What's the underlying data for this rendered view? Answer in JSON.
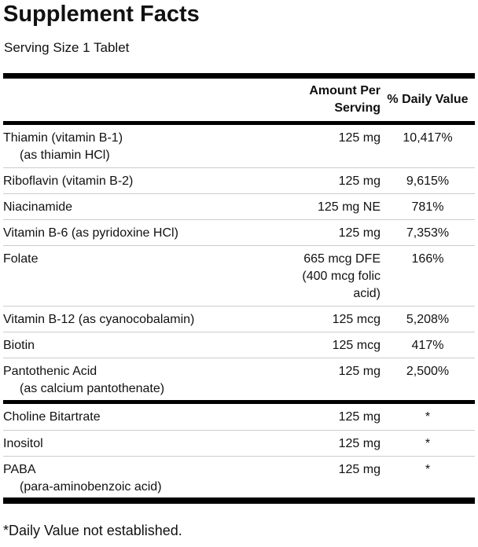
{
  "title": "Supplement Facts",
  "serving_size": "Serving Size 1 Tablet",
  "header": {
    "amount_line1": "Amount Per",
    "amount_line2": "Serving",
    "daily_value": "% Daily Value"
  },
  "group1": [
    {
      "name": "Thiamin (vitamin B-1)",
      "sub": "(as thiamin HCl)",
      "amount": "125 mg",
      "dv": "10,417%"
    },
    {
      "name": "Riboflavin (vitamin B-2)",
      "amount": "125 mg",
      "dv": "9,615%"
    },
    {
      "name": "Niacinamide",
      "amount": "125 mg NE",
      "dv": "781%"
    },
    {
      "name": "Vitamin B-6 (as pyridoxine HCl)",
      "amount": "125 mg",
      "dv": "7,353%"
    },
    {
      "name": "Folate",
      "amount": "665 mcg DFE",
      "amount2": "(400 mcg folic",
      "amount3": "acid)",
      "dv": "166%"
    },
    {
      "name": "Vitamin B-12 (as cyanocobalamin)",
      "amount": "125 mcg",
      "dv": "5,208%"
    },
    {
      "name": "Biotin",
      "amount": "125 mcg",
      "dv": "417%"
    },
    {
      "name": "Pantothenic Acid",
      "sub": "(as calcium pantothenate)",
      "amount": "125 mg",
      "dv": "2,500%"
    }
  ],
  "group2": [
    {
      "name": "Choline Bitartrate",
      "amount": "125 mg",
      "dv": "*"
    },
    {
      "name": "Inositol",
      "amount": "125 mg",
      "dv": "*"
    },
    {
      "name": "PABA",
      "sub": "(para-aminobenzoic acid)",
      "amount": "125 mg",
      "dv": "*"
    }
  ],
  "footnote": "*Daily Value not established."
}
